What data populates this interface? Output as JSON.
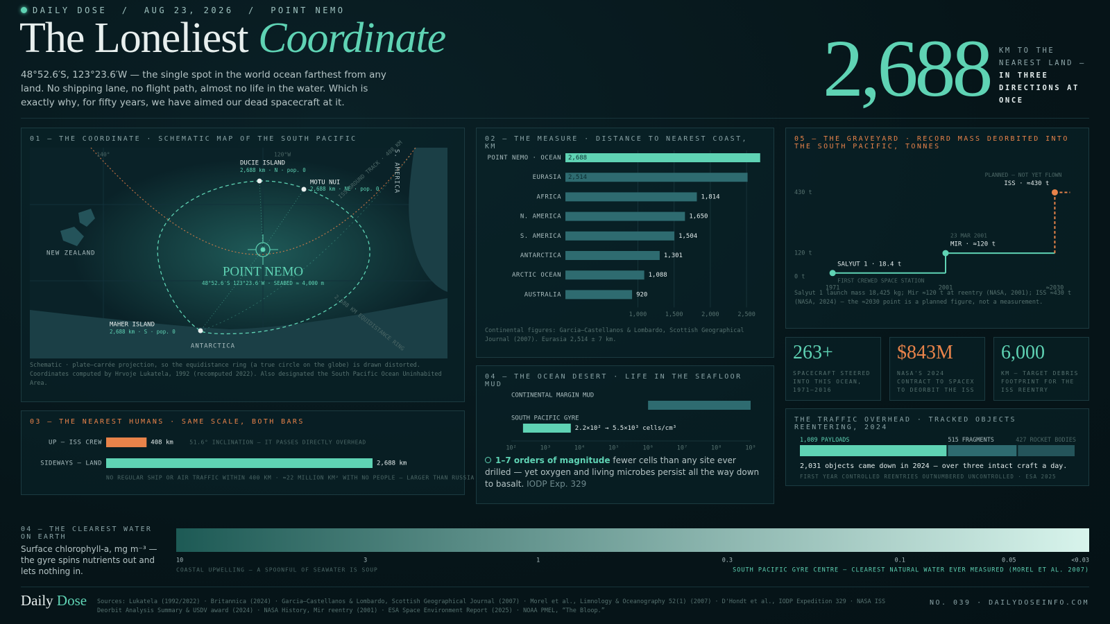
{
  "header": {
    "kicker": "DAILY DOSE  /  AUG 23, 2026  /  POINT NEMO",
    "title": "The Loneliest",
    "title_em": "Coordinate",
    "intro": "48°52.6′S, 123°23.6′W — the single spot in the world ocean farthest from any land. No shipping lane, no flight path, almost no life in the water. Which is exactly why, for fifty years, we have aimed our dead spacecraft at it."
  },
  "hero": {
    "value": "2,688",
    "caption": "KM TO THE NEAREST LAND —",
    "caption_em": "IN THREE DIRECTIONS AT ONCE"
  },
  "map": {
    "title": "01 — THE COORDINATE · SCHEMATIC MAP OF THE SOUTH PACIFIC",
    "grid_labels": [
      "140°",
      "120°W"
    ],
    "landmasses": [
      "NEW ZEALAND",
      "ANTARCTICA",
      "S. AMERICA"
    ],
    "points": [
      {
        "name": "DUCIE ISLAND",
        "detail": "2,688 km · N · pop. 0"
      },
      {
        "name": "MOTU NUI",
        "detail": "2,688 km · NE · pop. 0"
      },
      {
        "name": "MAHER ISLAND",
        "detail": "2,688 km · S · pop. 0"
      }
    ],
    "center": {
      "name": "POINT NEMO",
      "detail": "48°52.6′S 123°23.6′W · SEABED ≈ 4,000 m"
    },
    "track_label": "ISS GROUND TRACK · 408 KM",
    "ring_label": "2,688 KM EQUIDISTANCE RING",
    "note": "Schematic · plate–carrée projection, so the equidistance ring (a true circle on the globe) is drawn distorted. Coordinates computed by Hrvoje Lukatela, 1992 (recomputed 2022). Also designated the South Pacific Ocean Uninhabited Area."
  },
  "chart_data": [
    {
      "type": "bar",
      "title": "02 — THE MEASURE · DISTANCE TO NEAREST COAST, KM",
      "categories": [
        "POINT NEMO · OCEAN",
        "EURASIA",
        "AFRICA",
        "N. AMERICA",
        "S. AMERICA",
        "ANTARCTICA",
        "ARCTIC OCEAN",
        "AUSTRALIA"
      ],
      "values": [
        2688,
        2514,
        1814,
        1650,
        1504,
        1301,
        1088,
        920
      ],
      "value_labels": [
        "2,688",
        "2,514",
        "1,814",
        "1,650",
        "1,504",
        "1,301",
        "1,088",
        "920"
      ],
      "colors": [
        "#5fd3b4",
        "#2e6b70",
        "#2e6b70",
        "#2e6b70",
        "#2e6b70",
        "#2e6b70",
        "#2e6b70",
        "#2e6b70"
      ],
      "xlim": [
        0,
        2700
      ],
      "xticks": [
        {
          "value": 1000,
          "label": "1,000"
        },
        {
          "value": 1500,
          "label": "1,500"
        },
        {
          "value": 2000,
          "label": "2,000"
        },
        {
          "value": 2500,
          "label": "2,500"
        }
      ],
      "grid": true,
      "note": "Continental figures: Garcia–Castellanos & Lombardo, Scottish Geographical Journal (2007). Eurasia 2,514 ± 7 km."
    },
    {
      "type": "step",
      "title": "05 — THE GRAVEYARD · RECORD MASS DEORBITED INTO THE SOUTH PACIFIC, TONNES",
      "x": [
        1971,
        2001,
        2030
      ],
      "values": [
        18.4,
        120,
        430
      ],
      "value_labels": [
        "SALYUT 1 · 18.4 t",
        "MIR · ≈120 t",
        "ISS · ≈430 t"
      ],
      "annotations": [
        "FIRST CREWED SPACE STATION",
        "23 MAR 2001",
        "PLANNED — NOT YET FLOWN"
      ],
      "color": "#5fd3b4",
      "planned_color": "#e8834a",
      "xlim": [
        1966,
        2036
      ],
      "ylim": [
        0,
        460
      ],
      "xticks": [
        1971,
        2001,
        {
          "value": 2030,
          "label": "≈2030"
        }
      ],
      "yticks": [
        {
          "value": 0,
          "label": "0 t"
        },
        {
          "value": 120,
          "label": "120 t"
        },
        {
          "value": 430,
          "label": "430 t"
        }
      ],
      "note": "Salyut 1 launch mass 18,425 kg; Mir ≈120 t at reentry (NASA, 2001); ISS ≈430 t (NASA, 2024) — the ≈2030 point is a planned figure, not a measurement."
    },
    {
      "type": "bar",
      "title": "03 — THE NEAREST HUMANS · SAME SCALE, BOTH BARS",
      "categories": [
        "UP — ISS CREW",
        "SIDEWAYS — LAND"
      ],
      "values": [
        408,
        2688
      ],
      "value_labels": [
        "408 km",
        "2,688 km"
      ],
      "colors": [
        "#e8834a",
        "#5fd3b4"
      ],
      "xlim": [
        0,
        3500
      ],
      "notes": [
        "51.6° INCLINATION — IT PASSES DIRECTLY OVERHEAD",
        "NO REGULAR SHIP OR AIR TRAFFIC WITHIN 400 KM · ≈22 MILLION KM² WITH NO PEOPLE — LARGER THAN RUSSIA"
      ]
    },
    {
      "type": "range_bar",
      "title": "04 — THE OCEAN DESERT · LIFE IN THE SEAFLOOR MUD",
      "categories": [
        "CONTINENTAL MARGIN MUD",
        "SOUTH PACIFIC GYRE"
      ],
      "low": [
        1000000,
        220
      ],
      "high": [
        1000000000,
        5500
      ],
      "value_labels": [
        null,
        "2.2×10² → 5.5×10³ cells/cm³"
      ],
      "colors": [
        "#2e6b70",
        "#5fd3b4"
      ],
      "log_x": true,
      "xlim": [
        100,
        1000000000
      ],
      "xticks": [
        {
          "value": 100,
          "label": "10²"
        },
        {
          "value": 1000,
          "label": "10³"
        },
        {
          "value": 10000,
          "label": "10⁴"
        },
        {
          "value": 100000,
          "label": "10⁵"
        },
        {
          "value": 1000000,
          "label": "10⁶"
        },
        {
          "value": 10000000,
          "label": "10⁷"
        },
        {
          "value": 100000000,
          "label": "10⁸"
        },
        {
          "value": 1000000000,
          "label": "10⁹"
        }
      ],
      "lead": "1–7 orders of magnitude",
      "body": "fewer cells than any site ever drilled — yet oxygen and living microbes persist all the way down to basalt.",
      "source": "IODP Exp. 329"
    },
    {
      "type": "stacked_bar",
      "title": "THE TRAFFIC OVERHEAD · TRACKED OBJECTS REENTERING, 2024",
      "series": [
        {
          "name": "PAYLOADS",
          "color": "#5fd3b4",
          "values": [
            1089
          ],
          "value_labels": [
            "1,089"
          ]
        },
        {
          "name": "FRAGMENTS",
          "color": "#2e6b70",
          "values": [
            515
          ],
          "value_labels": [
            "515"
          ]
        },
        {
          "name": "ROCKET BODIES",
          "color": "#24545a",
          "values": [
            427
          ],
          "value_labels": [
            "427"
          ]
        }
      ],
      "summary": "2,031 objects came down in 2024 — over three intact craft a day.",
      "note": "FIRST YEAR CONTROLLED REENTRIES OUTNUMBERED UNCONTROLLED · ESA 2025"
    },
    {
      "type": "gradient_scale",
      "title": "04 — THE CLEAREST WATER ON EARTH",
      "subtitle": "Surface chlorophyll-a, mg m⁻³ — the gyre spins nutrients out and lets nothing in.",
      "log_x": true,
      "xlim": [
        10,
        0.03
      ],
      "xticks": [
        10,
        3,
        1,
        0.3,
        0.1,
        0.05,
        {
          "value": 0.03,
          "label": "<0.03"
        }
      ],
      "colors": [
        "#1d5a55",
        "#d8f4ec"
      ],
      "left_label": "COASTAL UPWELLING — A SPOONFUL OF SEAWATER IS SOUP",
      "right_label": "SOUTH PACIFIC GYRE CENTRE — CLEAREST NATURAL WATER EVER MEASURED (MOREL ET AL. 2007)"
    }
  ],
  "stats": [
    {
      "value": "263+",
      "label": "SPACECRAFT STEERED INTO THIS OCEAN, 1971–2016"
    },
    {
      "value": "$843M",
      "label": "NASA'S 2024 CONTRACT TO SPACEX TO DEORBIT THE ISS"
    },
    {
      "value": "6,000",
      "label": "KM — TARGET DEBRIS FOOTPRINT FOR THE ISS REENTRY"
    }
  ],
  "footer": {
    "brand": "Daily",
    "brand_em": "Dose",
    "sources": "Sources: Lukatela (1992/2022) · Britannica (2024) · Garcia–Castellanos & Lombardo, Scottish Geographical Journal (2007) · Morel et al., Limnology & Oceanography 52(1) (2007) · D'Hondt et al., IODP Expedition 329 · NASA ISS Deorbit Analysis Summary & USDV award (2024) · NASA History, Mir reentry (2001) · ESA Space Environment Report (2025) · NOAA PMEL, “The Bloop.”",
    "issue": "NO. 039 · DAILYDOSEINFO.COM"
  }
}
